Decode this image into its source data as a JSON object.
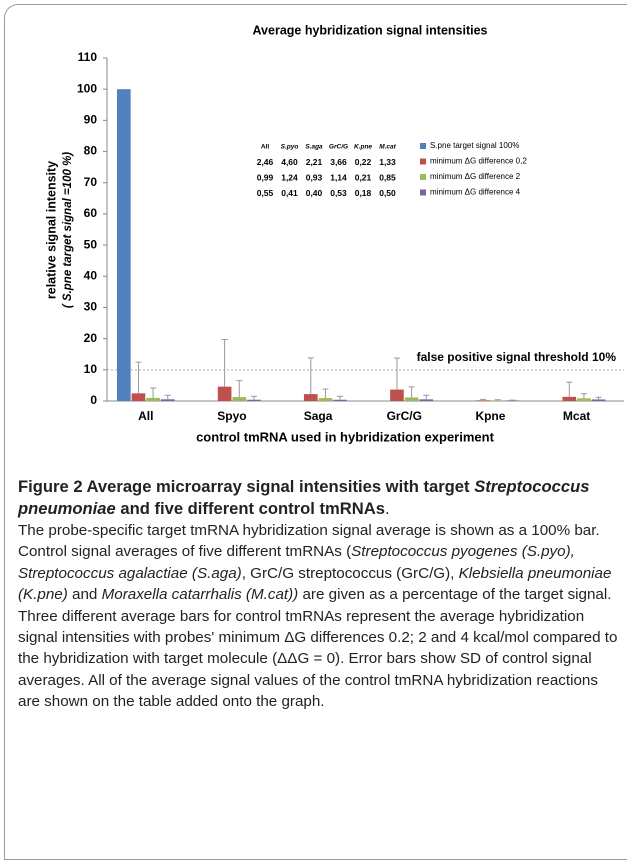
{
  "chart_data": {
    "type": "bar",
    "title": "Average hybridization signal intensities",
    "ylabel": "relative signal intensity",
    "ylabel2": "( S.pne target signal =100 %)",
    "xlabel": "control tmRNA used in hybridization experiment",
    "categories": [
      "All",
      "Spyo",
      "Saga",
      "GrC/G",
      "Kpne",
      "Mcat"
    ],
    "series": [
      {
        "name": "S.pne target signal 100%",
        "color": "#4f81bd",
        "values": [
          100,
          null,
          null,
          null,
          null,
          null
        ]
      },
      {
        "name": "minimum ΔG difference  0,2",
        "color": "#c0504d",
        "values": [
          2.46,
          4.6,
          2.21,
          3.66,
          0.22,
          1.33
        ],
        "value_labels": [
          "2,46",
          "4,60",
          "2,21",
          "3,66",
          "0,22",
          "1,33"
        ],
        "errors": [
          10,
          15.1,
          11.6,
          10.1,
          0.3,
          4.7
        ]
      },
      {
        "name": "minimum ΔG difference  2",
        "color": "#9bbb59",
        "values": [
          0.99,
          1.24,
          0.93,
          1.14,
          0.21,
          0.85
        ],
        "value_labels": [
          "0,99",
          "1,24",
          "0,93",
          "1,14",
          "0,21",
          "0,85"
        ],
        "errors": [
          3.2,
          5.3,
          2.9,
          3.4,
          0.2,
          1.5
        ]
      },
      {
        "name": "minimum ΔG difference  4",
        "color": "#8064a2",
        "values": [
          0.55,
          0.41,
          0.4,
          0.53,
          0.18,
          0.5
        ],
        "value_labels": [
          "0,55",
          "0,41",
          "0,40",
          "0,53",
          "0,18",
          "0,50"
        ],
        "errors": [
          1.3,
          1.1,
          1.1,
          1.3,
          0.1,
          0.7
        ]
      }
    ],
    "table_headers": [
      "All",
      "S.pyo",
      "S.aga",
      "GrC/G",
      "K.pne",
      "M.cat"
    ],
    "threshold": {
      "value": 10,
      "label": "false positive signal threshold 10%"
    },
    "ylim": [
      0,
      110
    ],
    "yticks": [
      0,
      10,
      20,
      30,
      40,
      50,
      60,
      70,
      80,
      90,
      100,
      110
    ]
  },
  "caption": {
    "title": [
      "Figure 2",
      "Average microarray signal intensities with target",
      "Streptococcus pneumoniae",
      "and five different control tmRNAs",
      "."
    ],
    "body": [
      "The probe-specific target tmRNA hybridization signal average is shown as a 100% bar. Control signal averages of five different tmRNAs (",
      "Streptococcus pyogenes (S.pyo), Streptococcus agalactiae (S.aga)",
      ", GrC/G streptococcus (GrC/G), ",
      "Klebsiella pneumoniae (K.pne)",
      " and ",
      "Moraxella catarrhalis (M.cat))",
      " are given as a percentage of the target signal. Three different average bars for control tmRNAs represent the average hybridization signal intensities with probes' minimum ΔG differences 0.2; 2 and 4 kcal/mol compared to the hybridization with target molecule (ΔΔG = 0). Error bars show SD of control signal averages. All of the average signal values of the control tmRNA hybridization reactions are shown on the table added onto the graph."
    ]
  }
}
